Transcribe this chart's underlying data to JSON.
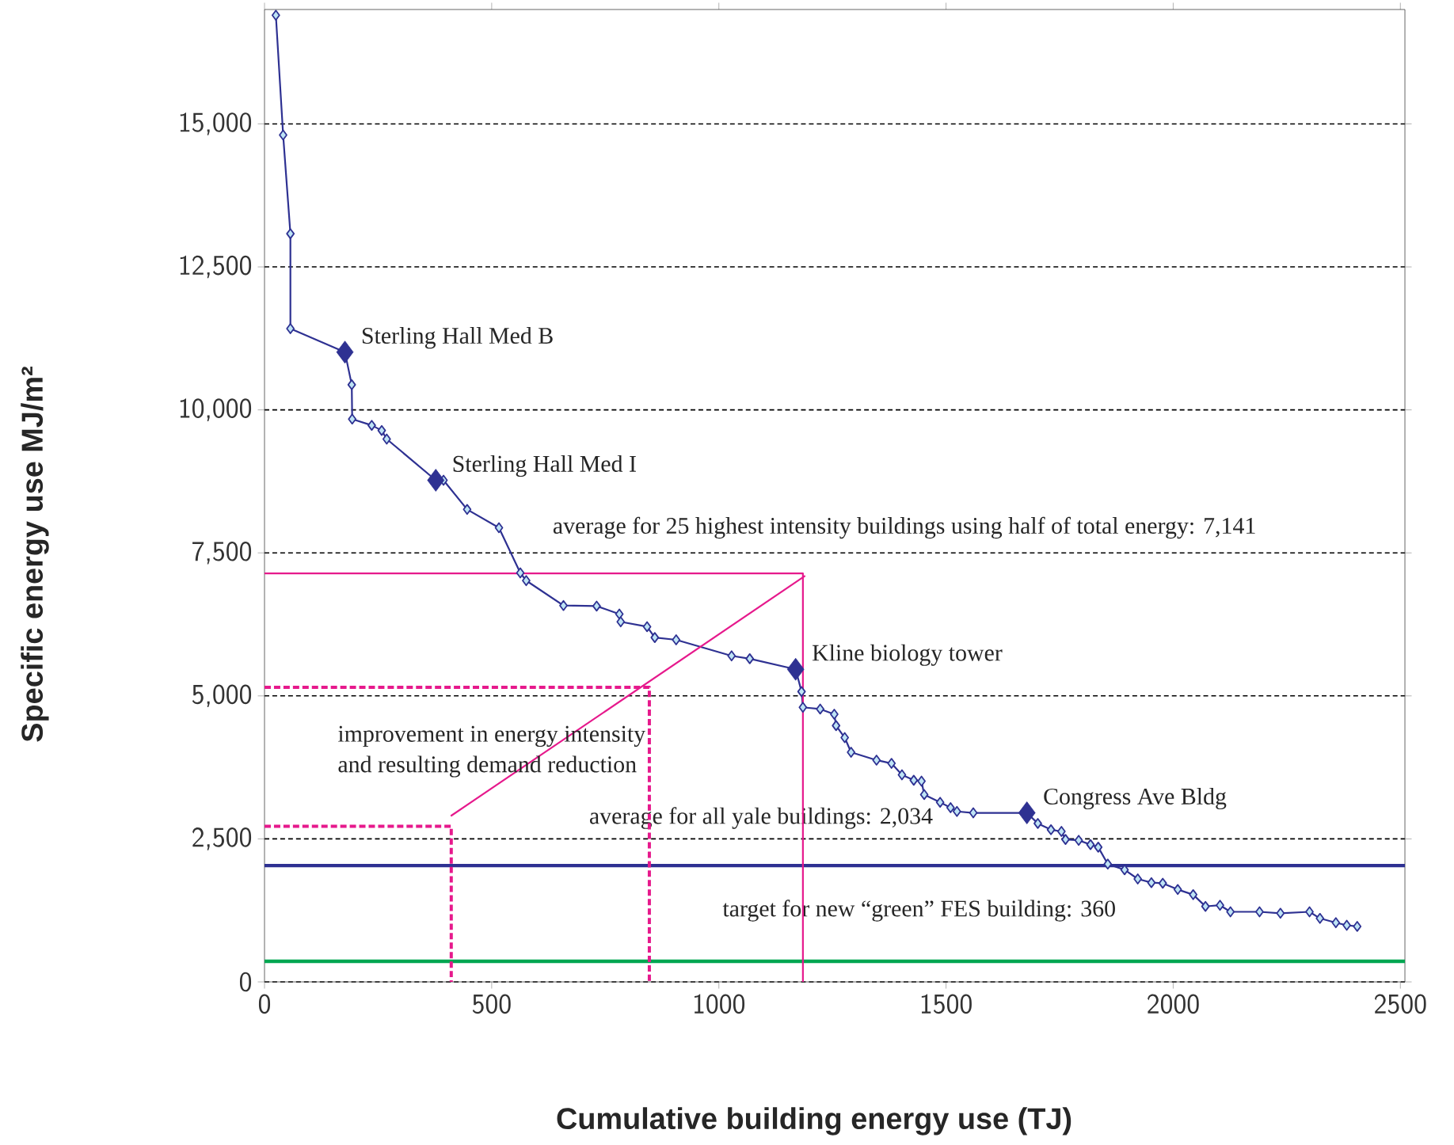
{
  "chart_data": {
    "type": "line",
    "xlabel": "Cumulative building energy use (TJ)",
    "ylabel": "Specific energy use MJ/m²",
    "xlim": [
      0,
      2510
    ],
    "ylim": [
      0,
      17000
    ],
    "xticks": [
      0,
      500,
      1000,
      1500,
      2000,
      2500
    ],
    "yticks": [
      0,
      {
        "value": 2500,
        "label": "2,500"
      },
      {
        "value": 5000,
        "label": "5,000"
      },
      {
        "value": 7500,
        "label": "7,500"
      },
      {
        "value": 10000,
        "label": "10,000"
      },
      {
        "value": 12500,
        "label": "12,500"
      },
      {
        "value": 15000,
        "label": "15,000"
      }
    ],
    "grid": "y",
    "series": [
      {
        "color": "#2e3192",
        "marker": "diamond",
        "x": [
          25,
          41,
          57,
          57,
          177,
          192,
          193,
          236,
          258,
          269,
          377,
          394,
          446,
          516,
          563,
          576,
          658,
          731,
          781,
          784,
          842,
          859,
          906,
          1028,
          1068,
          1169,
          1182,
          1185,
          1223,
          1254,
          1258,
          1277,
          1291,
          1347,
          1380,
          1403,
          1429,
          1446,
          1452,
          1487,
          1510,
          1524,
          1560,
          1678,
          1702,
          1731,
          1754,
          1763,
          1792,
          1818,
          1835,
          1856,
          1893,
          1922,
          1952,
          1977,
          2010,
          2044,
          2071,
          2103,
          2126,
          2190,
          2236,
          2300,
          2323,
          2358,
          2382,
          2405
        ],
        "values": [
          16900,
          14805,
          13080,
          11420,
          11010,
          10440,
          9840,
          9730,
          9640,
          9490,
          8770,
          8770,
          8260,
          7940,
          7150,
          7015,
          6580,
          6570,
          6430,
          6295,
          6210,
          6020,
          5980,
          5700,
          5650,
          5465,
          5075,
          4800,
          4770,
          4680,
          4480,
          4270,
          4015,
          3877,
          3820,
          3620,
          3525,
          3510,
          3275,
          3140,
          3045,
          2980,
          2955,
          2955,
          2770,
          2660,
          2630,
          2490,
          2475,
          2400,
          2355,
          2060,
          1960,
          1800,
          1735,
          1725,
          1615,
          1525,
          1320,
          1340,
          1225,
          1225,
          1200,
          1225,
          1110,
          1035,
          990,
          970
        ]
      },
      {
        "type": "scatter",
        "color": "#2e3192",
        "marker": "diamond",
        "x": [
          177,
          377,
          1169,
          1678
        ],
        "values": [
          11010,
          8770,
          5465,
          2955
        ]
      },
      {
        "color": "#e6198c",
        "marker": "none",
        "line_style": "solid",
        "x": [
          0,
          1185,
          1185
        ],
        "values": [
          7141,
          7141,
          0
        ]
      },
      {
        "color": "#e6198c",
        "marker": "none",
        "line_style": "dashed",
        "x": [
          0,
          847,
          847
        ],
        "values": [
          5150,
          5150,
          0
        ]
      },
      {
        "color": "#e6198c",
        "marker": "none",
        "line_style": "dashed",
        "x": [
          0,
          411,
          411
        ],
        "values": [
          2720,
          2720,
          0
        ]
      },
      {
        "color": "#e6198c",
        "marker": "none",
        "line_style": "solid",
        "x": [
          1190,
          410
        ],
        "values": [
          7100,
          2900
        ]
      }
    ],
    "ref_lines": [
      {
        "axis": "y",
        "value": 2034,
        "label": "average for all yale buildings: 2,034",
        "color": "#2e3192"
      },
      {
        "axis": "y",
        "value": 360,
        "label": "target for new “green” FES building: 360",
        "color": "#00a651"
      }
    ],
    "annotations": [
      "average for 25 highest  intensity buildings using half of total energy: 7,141",
      "improvement in energy intensity",
      "and resulting demand reduction",
      {
        "text": "Sterling Hall Med B",
        "x": 177,
        "y": 11010
      },
      {
        "text": "Sterling Hall Med I",
        "x": 377,
        "y": 8770
      },
      {
        "text": "Kline biology tower",
        "x": 1169,
        "y": 5465
      },
      {
        "text": "Congress Ave Bldg",
        "x": 1678,
        "y": 2955
      }
    ]
  }
}
